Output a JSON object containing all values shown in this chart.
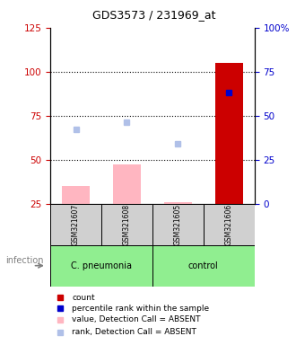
{
  "title": "GDS3573 / 231969_at",
  "samples": [
    "GSM321607",
    "GSM321608",
    "GSM321605",
    "GSM321606"
  ],
  "groups": [
    "C. pneumonia",
    "C. pneumonia",
    "control",
    "control"
  ],
  "bar_values_absent": [
    35,
    47,
    26,
    105
  ],
  "bar_colors_absent": [
    "#FFB6C1",
    "#FFB6C1",
    "#FFB6C1",
    "#cc0000"
  ],
  "rank_absent_left": [
    67,
    71,
    59,
    null
  ],
  "rank_present_left": [
    null,
    null,
    null,
    88
  ],
  "ylim_left": [
    25,
    125
  ],
  "ylim_right": [
    0,
    100
  ],
  "left_ticks": [
    25,
    50,
    75,
    100,
    125
  ],
  "right_ticks": [
    0,
    25,
    50,
    75,
    100
  ],
  "right_tick_labels": [
    "0",
    "25",
    "50",
    "75",
    "100%"
  ],
  "dotted_lines": [
    50,
    75,
    100
  ],
  "left_color": "#cc0000",
  "right_color": "#0000cc",
  "gray_color": "#d0d0d0",
  "green_color": "#90EE90",
  "light_blue": "#b0c0e8",
  "dark_blue": "#0000cc",
  "legend_items": [
    {
      "label": "count",
      "color": "#cc0000"
    },
    {
      "label": "percentile rank within the sample",
      "color": "#0000cc"
    },
    {
      "label": "value, Detection Call = ABSENT",
      "color": "#FFB6C1"
    },
    {
      "label": "rank, Detection Call = ABSENT",
      "color": "#b0c0e8"
    }
  ]
}
